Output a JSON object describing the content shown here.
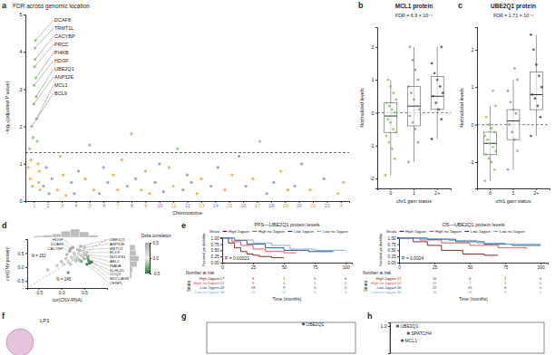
{
  "chart_data": [
    {
      "panel_label": "a",
      "type": "manhattan",
      "title": "FDR across genomic location",
      "x_label": "Chromosome",
      "y_label": "−log₁₀(adjusted P value)",
      "x": [
        0.6,
        0.7,
        0.75,
        0.8,
        0.85,
        0.9,
        0.95,
        1.0,
        1.02,
        1.05,
        1.08,
        1.1,
        1.12,
        1.15,
        1.18,
        1.2,
        1.25,
        1.3,
        1.35,
        1.4,
        1.45,
        1.7,
        1.9,
        2.1,
        2.3,
        2.7,
        2.9,
        3.1,
        3.3,
        3.7,
        3.9,
        4.2,
        4.7,
        5.0,
        5.3,
        5.7,
        6.0,
        6.3,
        6.7,
        7.0,
        7.3,
        7.7,
        8.0,
        8.3,
        8.7,
        9.0,
        9.3,
        9.7,
        10.0,
        10.3,
        10.7,
        11.0,
        11.3,
        11.7,
        12.0,
        12.3,
        12.7,
        13.0,
        13.7,
        14.2,
        14.7,
        15.2,
        15.7,
        16.2,
        16.7,
        17.2,
        17.7,
        18.2,
        18.7,
        19.2,
        19.7,
        20.2,
        20.8,
        21.8,
        22.8,
        23.2
      ],
      "values": [
        0.9,
        1.4,
        0.6,
        1.1,
        2.0,
        0.4,
        1.7,
        2.6,
        3.1,
        3.6,
        4.1,
        3.8,
        4.3,
        3.3,
        2.8,
        2.2,
        1.6,
        1.0,
        0.5,
        0.8,
        0.3,
        0.4,
        0.9,
        0.2,
        0.6,
        0.3,
        1.2,
        0.7,
        0.15,
        0.5,
        0.2,
        0.8,
        0.6,
        1.5,
        0.3,
        0.2,
        0.9,
        0.5,
        0.7,
        0.3,
        1.1,
        0.4,
        1.8,
        0.6,
        0.3,
        0.8,
        0.2,
        0.5,
        1.0,
        0.25,
        0.9,
        0.4,
        1.4,
        0.3,
        0.7,
        0.5,
        0.2,
        0.6,
        0.4,
        0.9,
        0.3,
        0.7,
        1.2,
        0.4,
        0.6,
        1.6,
        0.2,
        0.5,
        0.8,
        0.3,
        0.4,
        1.0,
        0.3,
        0.6,
        0.2,
        0.5
      ],
      "colors": [
        "#f2a541",
        "#8cc47a",
        "#f2a541",
        "#f2a541",
        "#8cc47a",
        "#f2a541",
        "#8cc47a",
        "#8cc47a",
        "#8cc47a",
        "#8cc47a",
        "#8cc47a",
        "#8cc47a",
        "#8cc47a",
        "#8cc47a",
        "#8cc47a",
        "#8cc47a",
        "#8cc47a",
        "#f2a541",
        "#f2a541",
        "#f2a541",
        "#f2a541",
        "#9f86c9",
        "#9f86c9",
        "#9f86c9",
        "#9f86c9",
        "#f2a541",
        "#f2a541",
        "#f2a541",
        "#f2a541",
        "#9f86c9",
        "#9f86c9",
        "#9f86c9",
        "#f2a541",
        "#8cc47a",
        "#f2a541",
        "#9f86c9",
        "#9f86c9",
        "#9f86c9",
        "#f2a541",
        "#f2a541",
        "#f2a541",
        "#9f86c9",
        "#8cc47a",
        "#9f86c9",
        "#f2a541",
        "#f2a541",
        "#f2a541",
        "#9f86c9",
        "#9f86c9",
        "#9f86c9",
        "#f2a541",
        "#f2a541",
        "#8cc47a",
        "#9f86c9",
        "#9f86c9",
        "#9f86c9",
        "#f2a541",
        "#f2a541",
        "#9f86c9",
        "#9f86c9",
        "#f2a541",
        "#f2a541",
        "#9f86c9",
        "#9f86c9",
        "#f2a541",
        "#8cc47a",
        "#9f86c9",
        "#9f86c9",
        "#f2a541",
        "#f2a541",
        "#9f86c9",
        "#9f86c9",
        "#f2a541",
        "#9f86c9",
        "#f2a541",
        "#f2a541"
      ],
      "xlim": [
        0.4,
        23.6
      ],
      "xticks": [
        1,
        2,
        3,
        4,
        5,
        6,
        7,
        8,
        9,
        10,
        11,
        12,
        13,
        14,
        15,
        16,
        17,
        18,
        19,
        20,
        21,
        22,
        {
          "value": 23,
          "label": "X"
        }
      ],
      "ylim": [
        0,
        5
      ],
      "yticks": [
        0,
        1,
        2,
        3,
        4,
        5
      ],
      "threshold": 1.3,
      "annotations": [
        {
          "text": "DCAF8",
          "x": 1.12,
          "y": 4.3
        },
        {
          "text": "TRMT1L",
          "x": 1.08,
          "y": 4.1
        },
        {
          "text": "CACYBP",
          "x": 1.1,
          "y": 3.8
        },
        {
          "text": "PRCC",
          "x": 1.05,
          "y": 3.6
        },
        {
          "text": "PI4KB",
          "x": 1.15,
          "y": 3.3
        },
        {
          "text": "HDGF",
          "x": 1.02,
          "y": 3.1
        },
        {
          "text": "UBE2Q1",
          "x": 1.18,
          "y": 2.8
        },
        {
          "text": "ANP32E",
          "x": 1.0,
          "y": 2.6
        },
        {
          "text": "MCL1",
          "x": 1.2,
          "y": 2.2
        },
        {
          "text": "BCL9",
          "x": 0.85,
          "y": 2.0
        }
      ]
    },
    {
      "panel_label": "b",
      "type": "box",
      "title": "MCL1 protein",
      "annotation": "FDR = 6.9 × 10⁻⁵",
      "x_label": "chr1 gain status",
      "y_label": "Normalized levels",
      "categories": [
        "0",
        "1",
        "2+"
      ],
      "boxes": [
        {
          "low": -1.9,
          "q1": -0.6,
          "median": -0.1,
          "q3": 0.3,
          "high": 1.0
        },
        {
          "low": -1.5,
          "q1": -0.4,
          "median": 0.2,
          "q3": 0.8,
          "high": 2.0
        },
        {
          "low": -0.8,
          "q1": 0.1,
          "median": 0.5,
          "q3": 1.1,
          "high": 2.0
        }
      ],
      "points": [
        [
          -1.9,
          -1.4,
          -1.1,
          -0.9,
          -0.7,
          -0.6,
          -0.5,
          -0.3,
          -0.2,
          -0.1,
          0,
          0.1,
          0.2,
          0.3,
          0.4,
          0.6,
          0.8,
          1.0
        ],
        [
          -1.5,
          -0.9,
          -0.5,
          -0.3,
          -0.1,
          0.1,
          0.2,
          0.4,
          0.6,
          0.8,
          1.0,
          1.3,
          1.6,
          2.0
        ],
        [
          -0.8,
          -0.2,
          0.1,
          0.3,
          0.5,
          0.6,
          0.8,
          1.0,
          1.2,
          1.5,
          2.0
        ]
      ],
      "colors": [
        "#7fbf5f",
        "#8a9286",
        "#444444"
      ],
      "hline": 0,
      "ylim": [
        -2.3,
        2.6
      ],
      "yticks": [
        -2,
        -1,
        0,
        1,
        2
      ]
    },
    {
      "panel_label": "c",
      "type": "box",
      "title": "UBE2Q1 protein",
      "annotation": "FDR = 1.71 × 10⁻⁶",
      "x_label": "chr1 gain status",
      "y_label": "Normalized levels",
      "categories": [
        "0",
        "1",
        "2+"
      ],
      "boxes": [
        {
          "low": -1.5,
          "q1": -0.8,
          "median": -0.5,
          "q3": -0.2,
          "high": 0.5
        },
        {
          "low": -1.2,
          "q1": -0.4,
          "median": 0.1,
          "q3": 0.4,
          "high": 1.2
        },
        {
          "low": -0.3,
          "q1": 0.4,
          "median": 0.8,
          "q3": 1.4,
          "high": 2.4
        }
      ],
      "points": [
        [
          -1.5,
          -1.2,
          -1.0,
          -0.9,
          -0.8,
          -0.7,
          -0.6,
          -0.5,
          -0.4,
          -0.3,
          -0.2,
          -0.1,
          0,
          0.2,
          0.5,
          0.9
        ],
        [
          -1.2,
          -0.7,
          -0.4,
          -0.2,
          0,
          0.1,
          0.3,
          0.4,
          0.6,
          0.9,
          1.2,
          1.5
        ],
        [
          -0.3,
          0.2,
          0.5,
          0.7,
          0.8,
          1.0,
          1.3,
          1.6,
          2.0,
          2.4
        ]
      ],
      "colors": [
        "#7fbf5f",
        "#8a9286",
        "#444444"
      ],
      "hline": 0,
      "ylim": [
        -1.7,
        2.6
      ],
      "yticks": [
        -1,
        0,
        1,
        2
      ]
    },
    {
      "panel_label": "d",
      "type": "scatter",
      "x_label": "cor(CNV-RNA)",
      "y_label": "cor(CNV-protein)",
      "x": [
        0.25,
        0.2,
        0.18,
        0.42,
        0.5,
        0.4,
        0.55,
        0.52,
        0.58,
        0.58,
        0.6,
        0.66,
        0.62,
        0.56,
        0.1,
        0.15,
        0.22,
        0.3,
        0.35,
        0.05,
        0.28,
        0.38,
        0.45,
        0.48,
        0.32,
        0.4,
        0.5,
        0.12,
        0.0,
        -0.1,
        0.2,
        0.26,
        0.44,
        0.36,
        -0.3,
        0.15
      ],
      "values": [
        0.7,
        0.64,
        0.56,
        0.74,
        0.7,
        0.6,
        0.52,
        0.44,
        0.38,
        0.3,
        0.22,
        0.18,
        0.14,
        0.1,
        0.3,
        0.2,
        0.35,
        0.4,
        0.3,
        0.1,
        0.5,
        0.48,
        0.4,
        0.55,
        0.22,
        0.25,
        0.3,
        0.45,
        0.2,
        0.05,
        0.1,
        0.28,
        0.2,
        0.62,
        -0.1,
        -0.2
      ],
      "delta": [
        0.45,
        0.44,
        0.38,
        0.32,
        0.2,
        0.2,
        -0.03,
        -0.08,
        -0.2,
        -0.28,
        -0.38,
        -0.48,
        -0.48,
        -0.46,
        0.2,
        0.05,
        0.13,
        0.1,
        -0.05,
        0.05,
        0.22,
        0.1,
        -0.05,
        0.07,
        -0.1,
        -0.15,
        -0.2,
        0.33,
        0.2,
        0.15,
        -0.1,
        0.02,
        -0.24,
        0.26,
        0.2,
        -0.35
      ],
      "labels": [
        "HDGF",
        "DCAF8",
        "CACYBP",
        "UBE2Q1",
        "ANP32E",
        "MSTO1",
        "BCL9",
        "NUCKS1",
        "ABL2",
        "INAVA",
        "KLHL20",
        "COQ2",
        "SDCCAG8",
        "CENPL",
        null,
        null,
        null,
        null,
        null,
        null,
        null,
        null,
        null,
        null,
        null,
        null,
        null,
        null,
        null,
        null,
        null,
        null,
        null,
        null,
        null,
        null
      ],
      "xlim": [
        -0.75,
        1.0
      ],
      "xticks": [
        -0.5,
        {
          "value": 0,
          "label": "0.0"
        },
        0.5
      ],
      "ylim": [
        -0.75,
        1.0
      ],
      "yticks": [
        -0.5,
        {
          "value": 0,
          "label": "0.0"
        },
        0.5
      ],
      "annotations": [
        {
          "text": "N = 152",
          "x": -0.5,
          "y": 0.35
        },
        {
          "text": "N = 245",
          "x": 0.05,
          "y": -0.5
        }
      ],
      "color_bar": {
        "title": "Delta correlation",
        "range": [
          -0.5,
          0.5
        ],
        "ticks": [
          -0.5,
          {
            "value": 0,
            "label": "0.0"
          },
          0.5
        ]
      },
      "x_hist": {
        "bins": [
          -0.6,
          -0.4,
          -0.2,
          0,
          0.2,
          0.4,
          0.6,
          0.8
        ],
        "counts": [
          2,
          3,
          5,
          9,
          12,
          8,
          3
        ]
      },
      "y_hist": {
        "bins": [
          -0.4,
          -0.2,
          0,
          0.2,
          0.4,
          0.6,
          0.8
        ],
        "counts": [
          2,
          3,
          8,
          10,
          7,
          6
        ]
      }
    },
    {
      "panel_label": "e",
      "type": "line",
      "title": "PFS—UBE2Q1 protein levels",
      "legend_title": "Strata",
      "annotation": "P = 0.00021",
      "x_label": "Time (months)",
      "y_label": "Survival probability",
      "at_risk_title": "Number at risk",
      "at_risk_label": "Strata",
      "at_risk_times": [
        0,
        25,
        50,
        75,
        100
      ],
      "line_style": "step",
      "xlim": [
        0,
        105
      ],
      "xticks": [
        0,
        25,
        50,
        75,
        100
      ],
      "ylim": [
        0,
        1.03
      ],
      "yticks": [
        {
          "value": 0,
          "label": "0.00"
        },
        0.25,
        {
          "value": 0.5,
          "label": "0.50"
        },
        0.75,
        {
          "value": 1,
          "label": "1.00"
        }
      ],
      "series": [
        {
          "name": "High 1qgain",
          "color": "#7a1414",
          "x": [
            0,
            5,
            10,
            15,
            20,
            25,
            30,
            40,
            50
          ],
          "values": [
            1,
            0.8,
            0.6,
            0.45,
            0.35,
            0.3,
            0.25,
            0.2,
            0.2
          ],
          "at_risk": [
            17,
            5,
            1,
            0,
            0
          ]
        },
        {
          "name": "High no 1qgain",
          "color": "#e0474c",
          "x": [
            0,
            8,
            15,
            25,
            35,
            50,
            60
          ],
          "values": [
            1,
            0.85,
            0.7,
            0.55,
            0.45,
            0.4,
            0.4
          ],
          "at_risk": [
            14,
            8,
            4,
            1,
            0
          ]
        },
        {
          "name": "Low 1qgain",
          "color": "#1f3f7a",
          "x": [
            0,
            10,
            20,
            35,
            50,
            70,
            90
          ],
          "values": [
            1,
            0.9,
            0.75,
            0.6,
            0.5,
            0.45,
            0.45
          ],
          "at_risk": [
            26,
            18,
            9,
            3,
            0
          ]
        },
        {
          "name": "Low no 1qgain",
          "color": "#6fa8dc",
          "x": [
            0,
            10,
            25,
            40,
            55,
            75,
            100
          ],
          "values": [
            1,
            0.92,
            0.8,
            0.7,
            0.55,
            0.5,
            0.5
          ],
          "at_risk": [
            30,
            22,
            12,
            5,
            1
          ]
        }
      ]
    },
    {
      "type": "line",
      "title": "OS—UBE2Q1 protein levels",
      "legend_title": "Strata",
      "annotation": "P = 0.0024",
      "x_label": "Time (months)",
      "y_label": "Survival probability",
      "at_risk_title": "Number at risk",
      "at_risk_label": "Strata",
      "at_risk_times": [
        0,
        25,
        50,
        75,
        100
      ],
      "line_style": "step",
      "xlim": [
        0,
        105
      ],
      "xticks": [
        0,
        25,
        50,
        75,
        100
      ],
      "ylim": [
        0,
        1.03
      ],
      "yticks": [
        {
          "value": 0,
          "label": "0.00"
        },
        0.25,
        {
          "value": 0.5,
          "label": "0.50"
        },
        0.75,
        {
          "value": 1,
          "label": "1.00"
        }
      ],
      "series": [
        {
          "name": "High 1qgain",
          "color": "#7a1414",
          "x": [
            0,
            10,
            20,
            30,
            45,
            60,
            70
          ],
          "values": [
            1,
            0.85,
            0.7,
            0.5,
            0.35,
            0.3,
            0.3
          ],
          "at_risk": [
            17,
            10,
            4,
            1,
            0
          ]
        },
        {
          "name": "High no 1qgain",
          "color": "#e0474c",
          "x": [
            0,
            15,
            30,
            50,
            70,
            90
          ],
          "values": [
            1,
            0.92,
            0.8,
            0.7,
            0.6,
            0.55
          ],
          "at_risk": [
            14,
            11,
            7,
            3,
            0
          ]
        },
        {
          "name": "Low 1qgain",
          "color": "#1f3f7a",
          "x": [
            0,
            20,
            40,
            60,
            80,
            100
          ],
          "values": [
            1,
            0.95,
            0.85,
            0.75,
            0.7,
            0.7
          ],
          "at_risk": [
            26,
            22,
            15,
            6,
            1
          ]
        },
        {
          "name": "Low no 1qgain",
          "color": "#6fa8dc",
          "x": [
            0,
            15,
            35,
            55,
            75,
            100
          ],
          "values": [
            1,
            0.97,
            0.9,
            0.8,
            0.75,
            0.75
          ],
          "at_risk": [
            30,
            26,
            18,
            9,
            2
          ]
        }
      ]
    },
    {
      "panel_label": "f",
      "type": "diagram",
      "nodes": [
        {
          "label": "LP1"
        }
      ]
    },
    {
      "panel_label": "g",
      "type": "scatter",
      "x": [
        0.3
      ],
      "values": [
        0.95
      ],
      "labels": [
        "UBE2Q1"
      ],
      "color": "#555555",
      "xlim": [
        -1,
        1
      ],
      "ylim": [
        0,
        1
      ],
      "tick_labels": false
    },
    {
      "panel_label": "h",
      "type": "scatter",
      "x": [
        0.05,
        0.12,
        0.08
      ],
      "values": [
        1.0,
        0.96,
        0.92
      ],
      "labels": [
        "UBE2Q1",
        "SPATCH4",
        "MCL1"
      ],
      "color": "#555555",
      "xlim": [
        0,
        1
      ],
      "ylim": [
        0.85,
        1.02
      ],
      "yticks": [
        {
          "value": 1,
          "label": "1.0"
        }
      ],
      "tick_labels": "y"
    }
  ]
}
